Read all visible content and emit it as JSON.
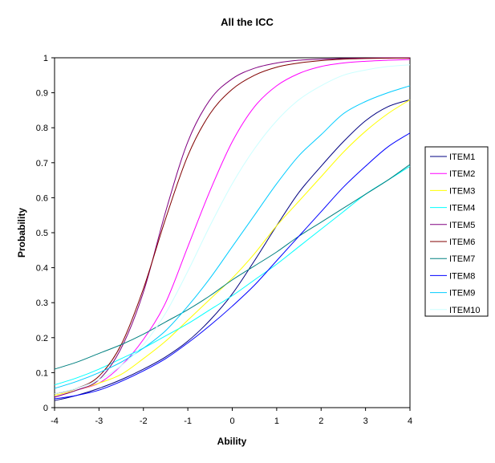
{
  "chart_data": {
    "type": "line",
    "title": "All the ICC",
    "xlabel": "Ability",
    "ylabel": "Probability",
    "xlim": [
      -4,
      4
    ],
    "ylim": [
      0,
      1
    ],
    "x_ticks": [
      "-4",
      "-3",
      "-2",
      "-1",
      "0",
      "1",
      "2",
      "3",
      "4"
    ],
    "y_ticks": [
      "0",
      "0.1",
      "0.2",
      "0.3",
      "0.4",
      "0.5",
      "0.6",
      "0.7",
      "0.8",
      "0.9",
      "1"
    ],
    "grid": false,
    "legend_position": "right",
    "x": [
      -4,
      -3.5,
      -3,
      -2.5,
      -2,
      -1.5,
      -1,
      -0.5,
      0,
      0.5,
      1,
      1.5,
      2,
      2.5,
      3,
      3.5,
      4
    ],
    "series": [
      {
        "name": "ITEM1",
        "color": "#000080",
        "values": [
          0.02,
          0.035,
          0.055,
          0.08,
          0.11,
          0.145,
          0.19,
          0.25,
          0.325,
          0.42,
          0.52,
          0.615,
          0.69,
          0.76,
          0.82,
          0.86,
          0.88
        ]
      },
      {
        "name": "ITEM2",
        "color": "#ff00ff",
        "values": [
          0.03,
          0.05,
          0.07,
          0.12,
          0.195,
          0.3,
          0.46,
          0.62,
          0.76,
          0.86,
          0.92,
          0.955,
          0.975,
          0.985,
          0.99,
          0.993,
          0.995
        ]
      },
      {
        "name": "ITEM3",
        "color": "#ffff00",
        "values": [
          0.035,
          0.05,
          0.07,
          0.095,
          0.14,
          0.19,
          0.25,
          0.31,
          0.37,
          0.44,
          0.52,
          0.59,
          0.66,
          0.73,
          0.79,
          0.84,
          0.88
        ]
      },
      {
        "name": "ITEM4",
        "color": "#00ffff",
        "values": [
          0.065,
          0.085,
          0.11,
          0.14,
          0.17,
          0.205,
          0.24,
          0.28,
          0.32,
          0.365,
          0.41,
          0.46,
          0.51,
          0.56,
          0.61,
          0.65,
          0.69
        ]
      },
      {
        "name": "ITEM5",
        "color": "#800080",
        "values": [
          0.03,
          0.05,
          0.08,
          0.17,
          0.33,
          0.56,
          0.76,
          0.88,
          0.94,
          0.97,
          0.985,
          0.993,
          0.996,
          0.998,
          0.999,
          1.0,
          1.0
        ]
      },
      {
        "name": "ITEM6",
        "color": "#800000",
        "values": [
          0.04,
          0.055,
          0.09,
          0.18,
          0.34,
          0.54,
          0.72,
          0.84,
          0.91,
          0.95,
          0.973,
          0.985,
          0.992,
          0.996,
          0.998,
          0.999,
          0.999
        ]
      },
      {
        "name": "ITEM7",
        "color": "#008080",
        "values": [
          0.11,
          0.13,
          0.155,
          0.18,
          0.21,
          0.245,
          0.28,
          0.32,
          0.365,
          0.405,
          0.445,
          0.49,
          0.53,
          0.57,
          0.61,
          0.65,
          0.695
        ]
      },
      {
        "name": "ITEM8",
        "color": "#0000ff",
        "values": [
          0.025,
          0.035,
          0.05,
          0.075,
          0.105,
          0.14,
          0.185,
          0.235,
          0.29,
          0.35,
          0.42,
          0.49,
          0.56,
          0.63,
          0.69,
          0.745,
          0.785
        ]
      },
      {
        "name": "ITEM9",
        "color": "#00ccff",
        "values": [
          0.055,
          0.075,
          0.1,
          0.13,
          0.17,
          0.22,
          0.29,
          0.37,
          0.46,
          0.55,
          0.64,
          0.72,
          0.78,
          0.84,
          0.875,
          0.9,
          0.92
        ]
      },
      {
        "name": "ITEM10",
        "color": "#ccffff",
        "values": [
          0.04,
          0.055,
          0.08,
          0.12,
          0.18,
          0.27,
          0.39,
          0.52,
          0.64,
          0.74,
          0.82,
          0.88,
          0.92,
          0.95,
          0.965,
          0.975,
          0.98
        ]
      }
    ]
  }
}
